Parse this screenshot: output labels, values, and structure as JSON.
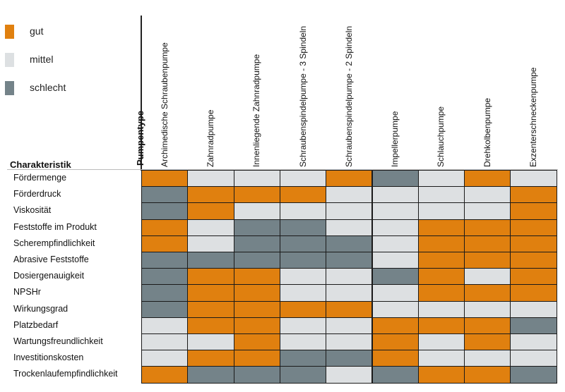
{
  "colors": {
    "gut": "#e0800f",
    "mittel": "#dde0e2",
    "schlecht": "#748389"
  },
  "legend": [
    {
      "key": "gut",
      "label": "gut"
    },
    {
      "key": "mittel",
      "label": "mittel"
    },
    {
      "key": "schlecht",
      "label": "schlecht"
    }
  ],
  "chart_data": {
    "type": "heatmap",
    "column_header": "Pumpentype",
    "row_header": "Charakteristik",
    "columns": [
      "Archimedische Schraubenpumpe",
      "Zahnradpumpe",
      "Innenliegende Zahnradpumpe",
      "Schraubenspindelpumpe - 3 Spindeln",
      "Schraubenspindelpumpe - 2 Spindeln",
      "Impellerpumpe",
      "Schlauchpumpe",
      "Drehkolbenpumpe",
      "Exzenterschneckenpumpe"
    ],
    "rows": [
      "Fördermenge",
      "Förderdruck",
      "Viskosität",
      "Feststoffe im Produkt",
      "Scherempfindlichkeit",
      "Abrasive Feststoffe",
      "Dosiergenauigkeit",
      "NPSHr",
      "Wirkungsgrad",
      "Platzbedarf",
      "Wartungsfreundlichkeit",
      "Investitionskosten",
      "Trockenlaufempfindlichkeit"
    ],
    "values": [
      [
        "gut",
        "mittel",
        "mittel",
        "mittel",
        "gut",
        "schlecht",
        "mittel",
        "gut",
        "mittel"
      ],
      [
        "schlecht",
        "gut",
        "gut",
        "gut",
        "mittel",
        "mittel",
        "mittel",
        "mittel",
        "gut"
      ],
      [
        "schlecht",
        "gut",
        "mittel",
        "mittel",
        "mittel",
        "mittel",
        "mittel",
        "mittel",
        "gut"
      ],
      [
        "gut",
        "mittel",
        "schlecht",
        "schlecht",
        "mittel",
        "mittel",
        "gut",
        "gut",
        "gut"
      ],
      [
        "gut",
        "mittel",
        "schlecht",
        "schlecht",
        "schlecht",
        "mittel",
        "gut",
        "gut",
        "gut"
      ],
      [
        "schlecht",
        "schlecht",
        "schlecht",
        "schlecht",
        "schlecht",
        "mittel",
        "gut",
        "gut",
        "gut"
      ],
      [
        "schlecht",
        "gut",
        "gut",
        "mittel",
        "mittel",
        "schlecht",
        "gut",
        "mittel",
        "gut"
      ],
      [
        "schlecht",
        "gut",
        "gut",
        "mittel",
        "mittel",
        "mittel",
        "gut",
        "gut",
        "gut"
      ],
      [
        "schlecht",
        "gut",
        "gut",
        "gut",
        "gut",
        "mittel",
        "mittel",
        "mittel",
        "mittel"
      ],
      [
        "mittel",
        "gut",
        "gut",
        "mittel",
        "mittel",
        "gut",
        "gut",
        "gut",
        "schlecht"
      ],
      [
        "mittel",
        "mittel",
        "gut",
        "mittel",
        "mittel",
        "gut",
        "mittel",
        "gut",
        "mittel"
      ],
      [
        "mittel",
        "gut",
        "gut",
        "schlecht",
        "schlecht",
        "gut",
        "mittel",
        "mittel",
        "mittel"
      ],
      [
        "gut",
        "schlecht",
        "schlecht",
        "schlecht",
        "mittel",
        "schlecht",
        "gut",
        "gut",
        "schlecht"
      ]
    ]
  }
}
